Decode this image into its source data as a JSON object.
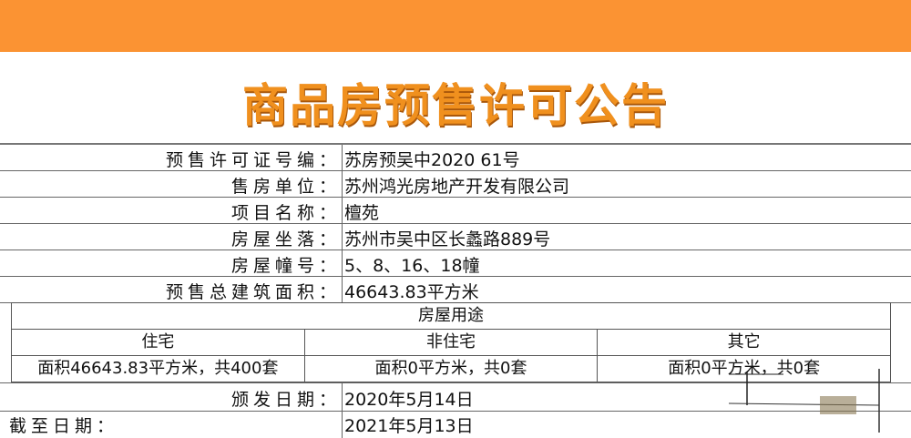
{
  "title": "商品房预售许可公告",
  "fields": [
    {
      "label": "预售许可证号编：",
      "value": "苏房预吴中2020 61号"
    },
    {
      "label": "售房单位：",
      "value": "苏州鸿光房地产开发有限公司"
    },
    {
      "label": "项目名称：",
      "value": "檀苑"
    },
    {
      "label": "房屋坐落：",
      "value": "苏州市吴中区长蠡路889号"
    },
    {
      "label": "房屋幢号：",
      "value": "5、8、16、18幢"
    },
    {
      "label": "预售总建筑面积：",
      "value": "46643.83平方米"
    }
  ],
  "usage": {
    "header": "房屋用途",
    "columns": [
      "住宅",
      "非住宅",
      "其它"
    ],
    "values": [
      "面积46643.83平方米，共400套",
      "面积0平方米，共0套",
      "面积0平方米，共0套"
    ]
  },
  "issue_date": {
    "label": "颁发日期：",
    "value": "2020年5月14日"
  },
  "expiry_date": {
    "label": "截至日期：",
    "value": "2021年5月13日"
  },
  "colors": {
    "band": "#fb9333",
    "title": "#f0901e"
  }
}
